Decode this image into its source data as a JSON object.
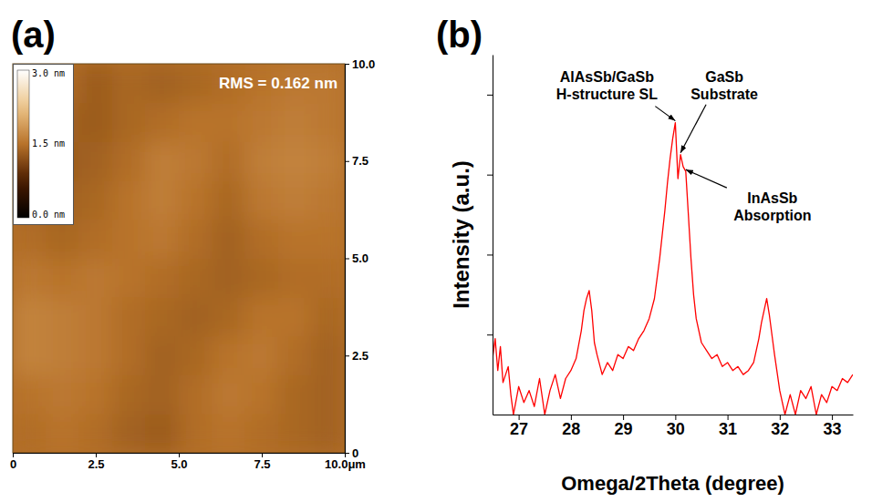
{
  "chart_data": [
    {
      "type": "heatmap",
      "panel_label": "(a)",
      "x": [
        0.5,
        1.5,
        2.5,
        3.5,
        4.5,
        5.5,
        6.5,
        7.5,
        8.5,
        9.5
      ],
      "y": [
        0.5,
        1.5,
        2.5,
        3.5,
        4.5,
        5.5,
        6.5,
        7.5,
        8.5,
        9.5
      ],
      "z": [
        [
          1.45,
          1.5,
          1.45,
          1.35,
          1.3,
          1.45,
          1.5,
          1.45,
          1.4,
          1.35
        ],
        [
          1.5,
          1.55,
          1.5,
          1.4,
          1.35,
          1.45,
          1.55,
          1.5,
          1.4,
          1.35
        ],
        [
          1.65,
          1.6,
          1.55,
          1.45,
          1.35,
          1.4,
          1.5,
          1.55,
          1.45,
          1.35
        ],
        [
          1.65,
          1.6,
          1.55,
          1.45,
          1.4,
          1.35,
          1.4,
          1.5,
          1.5,
          1.4
        ],
        [
          1.55,
          1.5,
          1.55,
          1.5,
          1.45,
          1.4,
          1.35,
          1.4,
          1.45,
          1.45
        ],
        [
          1.45,
          1.4,
          1.45,
          1.5,
          1.55,
          1.45,
          1.35,
          1.45,
          1.5,
          1.5
        ],
        [
          1.4,
          1.35,
          1.4,
          1.5,
          1.6,
          1.5,
          1.4,
          1.55,
          1.6,
          1.55
        ],
        [
          1.45,
          1.3,
          1.35,
          1.45,
          1.6,
          1.55,
          1.45,
          1.6,
          1.65,
          1.6
        ],
        [
          1.55,
          1.35,
          1.3,
          1.4,
          1.45,
          1.5,
          1.5,
          1.55,
          1.6,
          1.55
        ],
        [
          1.6,
          1.45,
          1.3,
          1.4,
          1.35,
          1.4,
          1.45,
          1.5,
          1.55,
          1.55
        ]
      ],
      "colorbar": {
        "range": [
          0,
          3
        ],
        "ticks": [
          {
            "value": 3,
            "label": "3.0 nm"
          },
          {
            "value": 1.5,
            "label": "1.5 nm"
          },
          {
            "value": 0,
            "label": "0.0 nm"
          }
        ]
      },
      "xlim": [
        0,
        10
      ],
      "xticks": [
        0,
        2.5,
        {
          "value": 5,
          "label": "5.0"
        },
        7.5,
        {
          "value": 10,
          "label": "10.0μm"
        }
      ],
      "ylim": [
        0,
        10
      ],
      "yticks": [
        0,
        2.5,
        {
          "value": 5,
          "label": "5.0"
        },
        7.5,
        {
          "value": 10,
          "label": "10.0"
        }
      ],
      "annotations": [
        {
          "text": "RMS = 0.162 nm"
        }
      ]
    },
    {
      "type": "line",
      "panel_label": "(b)",
      "x_label": "Omega/2Theta (degree)",
      "y_label": "Intensity (a.u.)",
      "x": [
        26.5,
        26.55,
        26.6,
        26.65,
        26.7,
        26.8,
        26.85,
        26.9,
        27.0,
        27.1,
        27.2,
        27.3,
        27.4,
        27.5,
        27.6,
        27.7,
        27.8,
        27.9,
        28.0,
        28.1,
        28.2,
        28.25,
        28.3,
        28.35,
        28.4,
        28.45,
        28.5,
        28.6,
        28.7,
        28.8,
        28.9,
        29.0,
        29.1,
        29.2,
        29.3,
        29.4,
        29.5,
        29.6,
        29.7,
        29.8,
        29.85,
        29.9,
        29.95,
        30.0,
        30.05,
        30.1,
        30.15,
        30.2,
        30.25,
        30.3,
        30.35,
        30.4,
        30.5,
        30.6,
        30.7,
        30.8,
        30.9,
        31.0,
        31.1,
        31.2,
        31.3,
        31.4,
        31.5,
        31.6,
        31.65,
        31.7,
        31.75,
        31.8,
        31.85,
        31.9,
        32.0,
        32.1,
        32.2,
        32.3,
        32.4,
        32.5,
        32.6,
        32.7,
        32.8,
        32.9,
        33.0,
        33.1,
        33.2,
        33.3,
        33.4
      ],
      "series": [
        {
          "color": "#ff0000",
          "values": [
            0.7,
            0.95,
            0.55,
            0.85,
            0.4,
            0.6,
            0.25,
            0.0,
            0.35,
            0.15,
            0.3,
            0.1,
            0.45,
            0.0,
            0.3,
            0.5,
            0.2,
            0.45,
            0.55,
            0.7,
            1.05,
            1.3,
            1.45,
            1.55,
            1.3,
            0.9,
            0.75,
            0.5,
            0.65,
            0.55,
            0.75,
            0.7,
            0.85,
            0.8,
            0.95,
            1.05,
            1.2,
            1.45,
            1.95,
            2.55,
            2.9,
            3.2,
            3.45,
            3.65,
            2.95,
            3.25,
            3.1,
            3.04,
            2.5,
            1.95,
            1.5,
            1.2,
            0.9,
            0.8,
            0.7,
            0.75,
            0.6,
            0.65,
            0.55,
            0.6,
            0.5,
            0.55,
            0.65,
            0.95,
            1.15,
            1.3,
            1.45,
            1.25,
            1.0,
            0.75,
            0.3,
            0.0,
            0.25,
            0.0,
            0.3,
            0.2,
            0.35,
            0.0,
            0.25,
            0.15,
            0.35,
            0.3,
            0.45,
            0.4,
            0.5
          ]
        }
      ],
      "xlim": [
        26.5,
        33.4
      ],
      "xticks": [
        27,
        28,
        29,
        30,
        31,
        32,
        33
      ],
      "ylim": [
        0,
        4.5
      ],
      "yticks": [
        1,
        2,
        3,
        4
      ],
      "tick_labels": "x",
      "annotations": [
        {
          "lines": [
            "AlAsSb/GaSb",
            "H-structure SL"
          ],
          "x": 30.0,
          "y": 3.65
        },
        {
          "lines": [
            "GaSb",
            "Substrate"
          ],
          "x": 30.1,
          "y": 3.25
        },
        {
          "lines": [
            "InAsSb",
            "Absorption"
          ],
          "x": 30.2,
          "y": 3.04
        }
      ]
    }
  ]
}
